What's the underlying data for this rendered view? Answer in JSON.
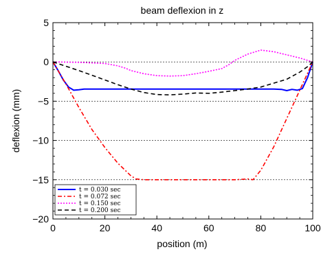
{
  "chart_data": {
    "type": "line",
    "title": "beam deflexion in z",
    "xlabel": "position (m)",
    "ylabel": "deflexion (mm)",
    "xlim": [
      0,
      100
    ],
    "ylim": [
      -20,
      5
    ],
    "xticks": [
      0,
      20,
      40,
      60,
      80,
      100
    ],
    "yticks": [
      5,
      0,
      -5,
      -10,
      -15,
      -20
    ],
    "grid": "horizontal dotted lines at y = 0, -5, -10, -15",
    "legend_position": "bottom-left",
    "series": [
      {
        "name": "t = 0.030 sec",
        "color": "#0000ff",
        "style": "solid",
        "x": [
          0,
          2,
          4,
          6,
          8,
          10,
          12,
          15,
          20,
          30,
          40,
          50,
          60,
          70,
          80,
          85,
          88,
          90,
          92,
          94,
          96,
          98,
          100
        ],
        "y": [
          0,
          -1.1,
          -2.3,
          -3.2,
          -3.6,
          -3.55,
          -3.45,
          -3.45,
          -3.45,
          -3.45,
          -3.45,
          -3.45,
          -3.45,
          -3.45,
          -3.45,
          -3.45,
          -3.5,
          -3.65,
          -3.5,
          -3.6,
          -3.4,
          -2.0,
          0
        ]
      },
      {
        "name": "t = 0.072 sec",
        "color": "#ff0000",
        "style": "dashdot",
        "x": [
          0,
          5,
          10,
          15,
          20,
          25,
          30,
          32,
          35,
          40,
          50,
          60,
          70,
          75,
          77,
          80,
          85,
          90,
          95,
          100
        ],
        "y": [
          0,
          -2.8,
          -5.8,
          -8.6,
          -10.9,
          -12.9,
          -14.5,
          -14.9,
          -15.0,
          -15.0,
          -15.0,
          -15.0,
          -15.0,
          -14.9,
          -15.0,
          -13.8,
          -10.8,
          -7.2,
          -3.6,
          0
        ]
      },
      {
        "name": "t = 0.150 sec",
        "color": "#ff00ff",
        "style": "dotted",
        "x": [
          0,
          10,
          20,
          25,
          28,
          30,
          35,
          40,
          45,
          50,
          55,
          60,
          65,
          68,
          70,
          75,
          80,
          85,
          90,
          95,
          98,
          100
        ],
        "y": [
          0,
          -0.05,
          -0.2,
          -0.5,
          -0.8,
          -1.1,
          -1.5,
          -1.75,
          -1.8,
          -1.75,
          -1.5,
          -1.2,
          -0.85,
          -0.3,
          0.2,
          1.0,
          1.5,
          1.3,
          0.9,
          0.5,
          0.2,
          0
        ]
      },
      {
        "name": "t = 0.200 sec",
        "color": "#000000",
        "style": "dashed",
        "x": [
          0,
          5,
          10,
          15,
          20,
          25,
          30,
          35,
          40,
          45,
          50,
          55,
          60,
          65,
          70,
          75,
          80,
          85,
          90,
          95,
          98,
          100
        ],
        "y": [
          0,
          -0.55,
          -1.1,
          -1.7,
          -2.3,
          -2.9,
          -3.45,
          -3.9,
          -4.15,
          -4.2,
          -4.1,
          -3.95,
          -4.0,
          -3.85,
          -3.65,
          -3.45,
          -3.2,
          -2.7,
          -2.2,
          -1.3,
          -0.6,
          0
        ]
      }
    ]
  }
}
